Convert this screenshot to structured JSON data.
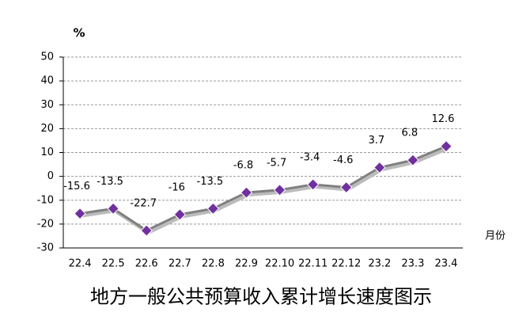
{
  "chart_data": {
    "type": "line",
    "title": "地方一般公共预算收入累计增长速度图示",
    "y_label": "%",
    "x_label": "月份",
    "categories": [
      "22.4",
      "22.5",
      "22.6",
      "22.7",
      "22.8",
      "22.9",
      "22.10",
      "22.11",
      "22.12",
      "23.2",
      "23.3",
      "23.4"
    ],
    "series": [
      {
        "name": "地方一般公共预算收入累计增长",
        "color": "#7f7f7f",
        "marker_color": "#7030a0",
        "values": [
          -15.6,
          -13.5,
          -22.7,
          -16.0,
          -13.5,
          -6.8,
          -5.7,
          -3.4,
          -4.6,
          3.7,
          6.8,
          12.6
        ]
      }
    ],
    "ylim": [
      -30,
      50
    ],
    "yticks": [
      -30,
      -20,
      -10,
      0,
      10,
      20,
      30,
      40,
      50
    ],
    "grid": true
  }
}
